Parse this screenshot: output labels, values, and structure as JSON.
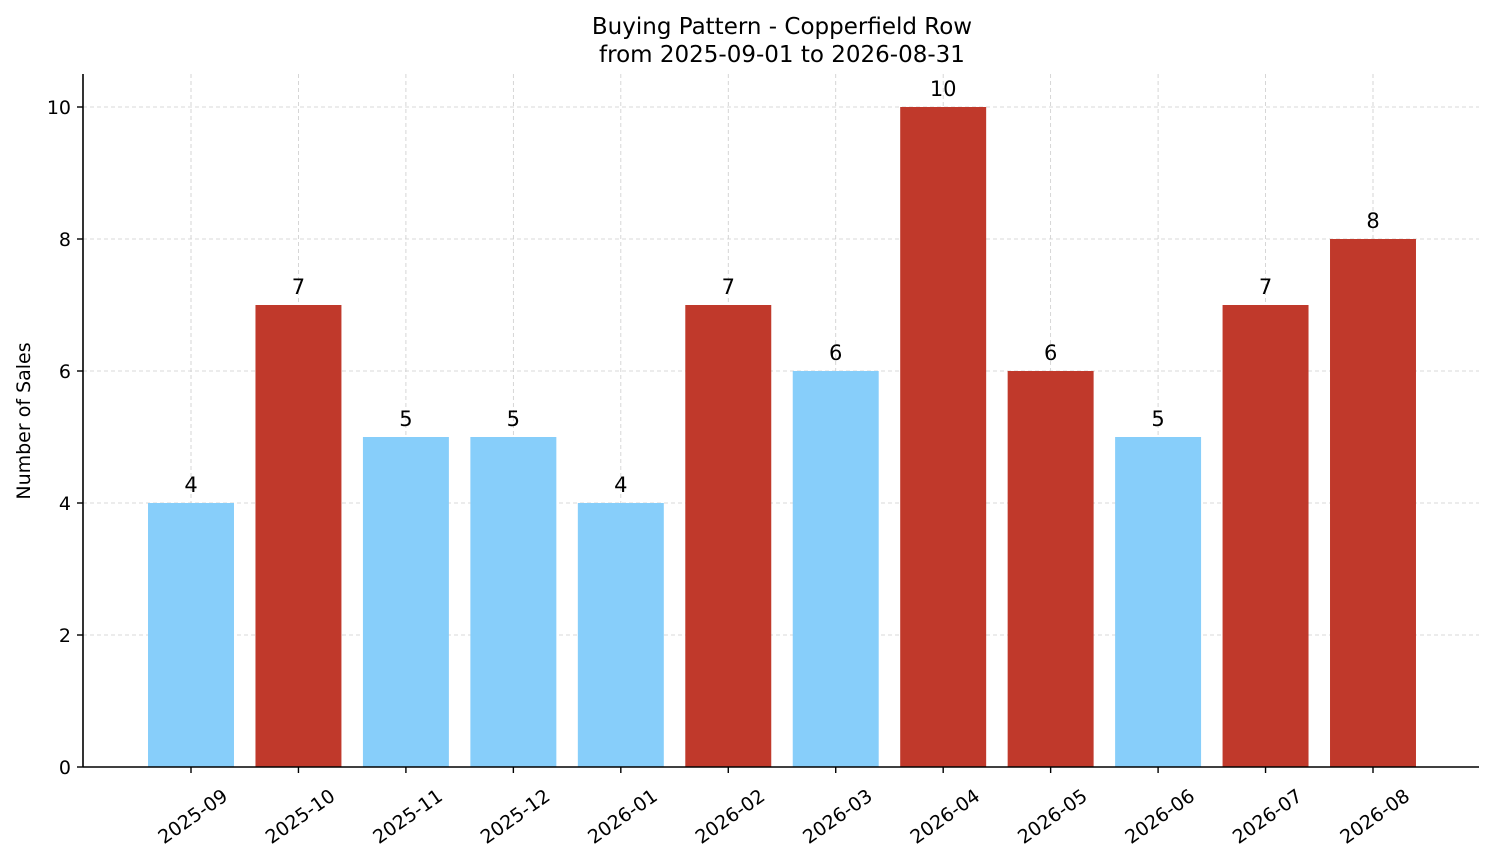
{
  "chart_data": {
    "type": "bar",
    "title": "Buying Pattern - Copperfield Row",
    "subtitle": "from 2025-09-01 to 2026-08-31",
    "xlabel": "",
    "ylabel": "Number of Sales",
    "categories": [
      "2025-09",
      "2025-10",
      "2025-11",
      "2025-12",
      "2026-01",
      "2026-02",
      "2026-03",
      "2026-04",
      "2026-05",
      "2026-06",
      "2026-07",
      "2026-08"
    ],
    "values": [
      4,
      7,
      5,
      5,
      4,
      7,
      6,
      10,
      6,
      5,
      7,
      8
    ],
    "bar_colors": [
      "#87CEFA",
      "#C0392B",
      "#87CEFA",
      "#87CEFA",
      "#87CEFA",
      "#C0392B",
      "#87CEFA",
      "#C0392B",
      "#C0392B",
      "#87CEFA",
      "#C0392B",
      "#C0392B"
    ],
    "ylim": [
      0,
      10.5
    ],
    "yticks": [
      0,
      2,
      4,
      6,
      8,
      10
    ],
    "grid": true,
    "data_labels": true
  }
}
